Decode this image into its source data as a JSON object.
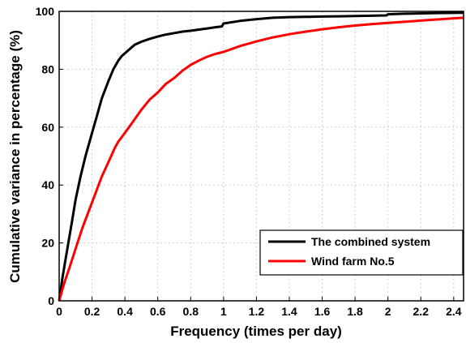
{
  "chart_data": {
    "type": "line",
    "title": "",
    "xlabel": "Frequency (times per day)",
    "ylabel": "Cumulative variance in percentage (%)",
    "xlim": [
      0,
      2.46
    ],
    "ylim": [
      0,
      100
    ],
    "xticks": [
      0,
      0.2,
      0.4,
      0.6,
      0.8,
      1,
      1.2,
      1.4,
      1.6,
      1.8,
      2,
      2.2,
      2.4
    ],
    "xtick_labels": [
      "0",
      "0.2",
      "0.4",
      "0.6",
      "0.8",
      "1",
      "1.2",
      "1.4",
      "1.6",
      "1.8",
      "2",
      "2.2",
      "2.4"
    ],
    "yticks": [
      0,
      20,
      40,
      60,
      80,
      100
    ],
    "ytick_labels": [
      "0",
      "20",
      "40",
      "60",
      "80",
      "100"
    ],
    "grid": true,
    "legend_position": "bottom-right",
    "series": [
      {
        "name": "The combined system",
        "color": "#000000",
        "x": [
          0,
          0.02,
          0.05,
          0.08,
          0.1,
          0.13,
          0.16,
          0.2,
          0.23,
          0.26,
          0.3,
          0.33,
          0.36,
          0.38,
          0.4,
          0.43,
          0.46,
          0.5,
          0.55,
          0.6,
          0.65,
          0.7,
          0.75,
          0.8,
          0.85,
          0.9,
          0.95,
          0.99,
          1.0,
          1.1,
          1.2,
          1.3,
          1.4,
          1.5,
          1.6,
          1.7,
          1.8,
          1.9,
          1.99,
          2.0,
          2.1,
          2.2,
          2.3,
          2.46
        ],
        "y": [
          0,
          8,
          18,
          28,
          35,
          43,
          50,
          58,
          64,
          70,
          76,
          80,
          83,
          84.5,
          85.5,
          87,
          88.5,
          89.5,
          90.5,
          91.3,
          92,
          92.5,
          93,
          93.3,
          93.7,
          94.1,
          94.5,
          94.8,
          95.8,
          96.7,
          97.3,
          97.8,
          98.0,
          98.1,
          98.2,
          98.3,
          98.4,
          98.5,
          98.6,
          99.0,
          99.2,
          99.3,
          99.4,
          99.5
        ]
      },
      {
        "name": "Wind farm No.5",
        "color": "#ff0000",
        "x": [
          0,
          0.03,
          0.06,
          0.1,
          0.14,
          0.18,
          0.22,
          0.26,
          0.3,
          0.34,
          0.36,
          0.4,
          0.45,
          0.5,
          0.55,
          0.6,
          0.65,
          0.7,
          0.75,
          0.8,
          0.85,
          0.9,
          0.95,
          1.0,
          1.05,
          1.1,
          1.2,
          1.3,
          1.4,
          1.5,
          1.6,
          1.7,
          1.8,
          1.9,
          2.0,
          2.1,
          2.2,
          2.3,
          2.4,
          2.46
        ],
        "y": [
          0,
          6,
          11,
          18,
          25,
          31,
          37,
          43,
          48,
          53,
          55,
          58,
          62,
          66,
          69.5,
          72,
          75,
          77,
          79.5,
          81.5,
          83,
          84.3,
          85.3,
          86,
          87,
          88,
          89.6,
          91,
          92.1,
          93,
          93.8,
          94.5,
          95.1,
          95.6,
          96,
          96.4,
          96.8,
          97.2,
          97.6,
          97.8
        ]
      }
    ]
  }
}
